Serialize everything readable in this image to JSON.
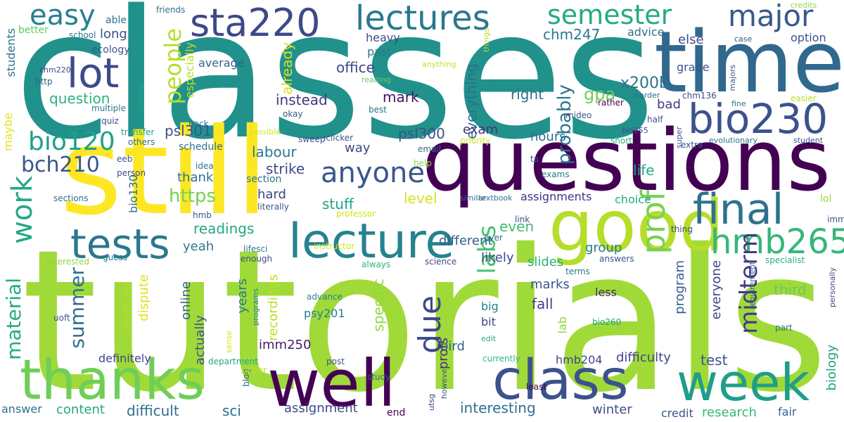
{
  "words": [
    {
      "text": "classes",
      "color": "#21918c"
    },
    {
      "text": "tutorials",
      "color": "#a0da39"
    },
    {
      "text": "still",
      "color": "#fde725"
    },
    {
      "text": "questions",
      "color": "#440154"
    },
    {
      "text": "time",
      "color": "#31688e"
    },
    {
      "text": "good",
      "color": "#b5de2b"
    },
    {
      "text": "well",
      "color": "#440154"
    },
    {
      "text": "thanks",
      "color": "#6ece58"
    },
    {
      "text": "class",
      "color": "#3b528b"
    },
    {
      "text": "week",
      "color": "#1f9e89"
    },
    {
      "text": "lecture",
      "color": "#26828e"
    },
    {
      "text": "lectures",
      "color": "#2a788e"
    },
    {
      "text": "sta220",
      "color": "#3e4989"
    },
    {
      "text": "semester",
      "color": "#25ab82"
    },
    {
      "text": "major",
      "color": "#38598c"
    },
    {
      "text": "bio230",
      "color": "#3b528b"
    },
    {
      "text": "final",
      "color": "#2c728e"
    },
    {
      "text": "hmb265",
      "color": "#35b779"
    },
    {
      "text": "tests",
      "color": "#2a788e"
    },
    {
      "text": "lot",
      "color": "#3e4a89"
    },
    {
      "text": "easy",
      "color": "#27808e"
    },
    {
      "text": "prof",
      "color": "#7ad151"
    },
    {
      "text": "anyone",
      "color": "#38588c"
    },
    {
      "text": "due",
      "color": "#3e4989"
    },
    {
      "text": "work",
      "color": "#22a884"
    },
    {
      "text": "bch210",
      "color": "#38588c"
    },
    {
      "text": "bio120",
      "color": "#1fa187"
    },
    {
      "text": "people",
      "color": "#b5de2b"
    },
    {
      "text": "material",
      "color": "#25ab82"
    },
    {
      "text": "labs",
      "color": "#48c16e"
    },
    {
      "text": "midterm",
      "color": "#443983"
    },
    {
      "text": "summer",
      "color": "#2d708e"
    },
    {
      "text": "https",
      "color": "#75d054"
    },
    {
      "text": "probably",
      "color": "#2c738e"
    },
    {
      "text": "gpa",
      "color": "#6ece58"
    },
    {
      "text": "x200b",
      "color": "#2c728e"
    },
    {
      "text": "chm247",
      "color": "#2a788e"
    },
    {
      "text": "psl301",
      "color": "#3b528b"
    },
    {
      "text": "psl300",
      "color": "#3b528b"
    },
    {
      "text": "readings",
      "color": "#22a884"
    },
    {
      "text": "labour",
      "color": "#2a788e"
    },
    {
      "text": "strike",
      "color": "#3e4a89"
    },
    {
      "text": "office",
      "color": "#404688"
    },
    {
      "text": "instead",
      "color": "#453581"
    },
    {
      "text": "mark",
      "color": "#471164"
    },
    {
      "text": "question",
      "color": "#2eb37c"
    },
    {
      "text": "already",
      "color": "#d8e219"
    },
    {
      "text": "especially",
      "color": "#bddf26"
    },
    {
      "text": "everything",
      "color": "#2d708e"
    },
    {
      "text": "right",
      "color": "#2c738e"
    },
    {
      "text": "exam",
      "color": "#46327e"
    },
    {
      "text": "hours",
      "color": "#2d708e"
    },
    {
      "text": "way",
      "color": "#3f4788"
    },
    {
      "text": "thank",
      "color": "#2c728e"
    },
    {
      "text": "hard",
      "color": "#414487"
    },
    {
      "text": "stuff",
      "color": "#20a386"
    },
    {
      "text": "level",
      "color": "#d8e219"
    },
    {
      "text": "even",
      "color": "#40bd72"
    },
    {
      "text": "different",
      "color": "#365c8d"
    },
    {
      "text": "likely",
      "color": "#3e4989"
    },
    {
      "text": "slides",
      "color": "#2ab07f"
    },
    {
      "text": "group",
      "color": "#29798e"
    },
    {
      "text": "life",
      "color": "#22a884"
    },
    {
      "text": "marks",
      "color": "#39568c"
    },
    {
      "text": "fall",
      "color": "#424086"
    },
    {
      "text": "program",
      "color": "#365d8d"
    },
    {
      "text": "everyone",
      "color": "#3f4889"
    },
    {
      "text": "third",
      "color": "#65cb5e"
    },
    {
      "text": "less",
      "color": "#481f70"
    },
    {
      "text": "lab",
      "color": "#8bd646"
    },
    {
      "text": "bit",
      "color": "#404588"
    },
    {
      "text": "big",
      "color": "#26818e"
    },
    {
      "text": "specific",
      "color": "#90d743"
    },
    {
      "text": "profs",
      "color": "#472d7b"
    },
    {
      "text": "interesting",
      "color": "#2e6f8e"
    },
    {
      "text": "winter",
      "color": "#3d4d8a"
    },
    {
      "text": "bird",
      "color": "#33638d"
    },
    {
      "text": "yeah",
      "color": "#2a788e"
    },
    {
      "text": "years",
      "color": "#2a788e"
    },
    {
      "text": "actually",
      "color": "#39568c"
    },
    {
      "text": "online",
      "color": "#33638d"
    },
    {
      "text": "recordings",
      "color": "#b8de29"
    },
    {
      "text": "dispute",
      "color": "#dfe318"
    },
    {
      "text": "psy201",
      "color": "#287c8e"
    },
    {
      "text": "imm250",
      "color": "#481a6c"
    },
    {
      "text": "definitely",
      "color": "#3f4788"
    },
    {
      "text": "content",
      "color": "#22a884"
    },
    {
      "text": "difficult",
      "color": "#2d708e"
    },
    {
      "text": "sci",
      "color": "#2d708e"
    },
    {
      "text": "assignment",
      "color": "#3f4889"
    },
    {
      "text": "answer",
      "color": "#2c728e"
    },
    {
      "text": "end",
      "color": "#440154"
    },
    {
      "text": "credit",
      "color": "#3b528b"
    },
    {
      "text": "research",
      "color": "#35b779"
    },
    {
      "text": "fair",
      "color": "#33638d"
    },
    {
      "text": "biology",
      "color": "#20a386"
    },
    {
      "text": "test",
      "color": "#3b528b"
    },
    {
      "text": "difficulty",
      "color": "#3f4788"
    },
    {
      "text": "hmb204",
      "color": "#414487"
    },
    {
      "text": "assignments",
      "color": "#46327e"
    },
    {
      "text": "choice",
      "color": "#22a884"
    },
    {
      "text": "bad",
      "color": "#443983"
    },
    {
      "text": "grade",
      "color": "#39568c"
    },
    {
      "text": "else",
      "color": "#3e4989"
    },
    {
      "text": "option",
      "color": "#3b528b"
    },
    {
      "text": "advice",
      "color": "#2d708e"
    },
    {
      "text": "average",
      "color": "#32648e"
    },
    {
      "text": "heavy",
      "color": "#3d4d8a"
    },
    {
      "text": "past",
      "color": "#2a788e"
    },
    {
      "text": "long",
      "color": "#3b528b"
    },
    {
      "text": "able",
      "color": "#2d708e"
    },
    {
      "text": "better",
      "color": "#5ec962"
    },
    {
      "text": "ecology",
      "color": "#38588c"
    },
    {
      "text": "students",
      "color": "#2c738e"
    },
    {
      "text": "maybe",
      "color": "#e5e419"
    },
    {
      "text": "schedule",
      "color": "#2c728e"
    },
    {
      "text": "section",
      "color": "#2c738e"
    },
    {
      "text": "bio130",
      "color": "#2d708e"
    },
    {
      "text": "something",
      "color": "#b2dd2d"
    },
    {
      "text": "advance",
      "color": "#27808e"
    },
    {
      "text": "uoft",
      "color": "#3b528b"
    },
    {
      "text": "lifesci",
      "color": "#2a788e"
    },
    {
      "text": "enough",
      "color": "#3e4a89"
    },
    {
      "text": "guess",
      "color": "#287d8e"
    },
    {
      "text": "interested",
      "color": "#8fd744"
    },
    {
      "text": "science",
      "color": "#3f4889"
    },
    {
      "text": "always",
      "color": "#2fb47c"
    },
    {
      "text": "answers",
      "color": "#3b528b"
    },
    {
      "text": "terms",
      "color": "#2a788e"
    },
    {
      "text": "specialist",
      "color": "#2ab07f"
    },
    {
      "text": "requirement",
      "color": "#31688e"
    },
    {
      "text": "part",
      "color": "#2c728e"
    },
    {
      "text": "personally",
      "color": "#3e4a89"
    },
    {
      "text": "lol",
      "color": "#9bd93c"
    },
    {
      "text": "imm",
      "color": "#3b528b"
    },
    {
      "text": "thing",
      "color": "#3f4788"
    },
    {
      "text": "ever",
      "color": "#2d708e"
    },
    {
      "text": "link",
      "color": "#3b528b"
    },
    {
      "text": "similar",
      "color": "#31688e"
    },
    {
      "text": "textbook",
      "color": "#2c738e"
    },
    {
      "text": "edit",
      "color": "#25ab82"
    },
    {
      "text": "bio260",
      "color": "#20a386"
    },
    {
      "text": "currently",
      "color": "#35b779"
    },
    {
      "text": "least",
      "color": "#440154"
    },
    {
      "text": "study",
      "color": "#32648e"
    },
    {
      "text": "however",
      "color": "#3b528b"
    },
    {
      "text": "utsg",
      "color": "#3f4889"
    },
    {
      "text": "post",
      "color": "#3b528b"
    },
    {
      "text": "department",
      "color": "#22a884"
    },
    {
      "text": "blog",
      "color": "#31688e"
    },
    {
      "text": "upper",
      "color": "#b8de29"
    },
    {
      "text": "sense",
      "color": "#d8e219"
    },
    {
      "text": "programs",
      "color": "#26828e"
    },
    {
      "text": "sections",
      "color": "#2c728e"
    },
    {
      "text": "literally",
      "color": "#39568c"
    },
    {
      "text": "instructor",
      "color": "#d2e21b"
    },
    {
      "text": "hmb",
      "color": "#3b528b"
    },
    {
      "text": "professor",
      "color": "#d2e21b"
    },
    {
      "text": "help",
      "color": "#8bd646"
    },
    {
      "text": "ta",
      "color": "#3e4989"
    },
    {
      "text": "exams",
      "color": "#2a788e"
    },
    {
      "text": "idea",
      "color": "#2c728e"
    },
    {
      "text": "person",
      "color": "#3e4989"
    },
    {
      "text": "eeb",
      "color": "#3b528b"
    },
    {
      "text": "others",
      "color": "#2c728e"
    },
    {
      "text": "transfer",
      "color": "#1fa187"
    },
    {
      "text": "quiz",
      "color": "#3b528b"
    },
    {
      "text": "multiple",
      "color": "#2a788e"
    },
    {
      "text": "http",
      "color": "#33638d"
    },
    {
      "text": "chm220",
      "color": "#3e4989"
    },
    {
      "text": "tutorial",
      "color": "#22a884"
    },
    {
      "text": "school",
      "color": "#2c728e"
    },
    {
      "text": "friends",
      "color": "#2c728e"
    },
    {
      "text": "back",
      "color": "#2d708e"
    },
    {
      "text": "okay",
      "color": "#3b528b"
    },
    {
      "text": "sweep",
      "color": "#3e4a89"
    },
    {
      "text": "iclicker",
      "color": "#3b528b"
    },
    {
      "text": "possible",
      "color": "#d2e21b"
    },
    {
      "text": "email",
      "color": "#2d708e"
    },
    {
      "text": "priority",
      "color": "#d2e21b"
    },
    {
      "text": "anything",
      "color": "#c2df23"
    },
    {
      "text": "reading",
      "color": "#65cb5e"
    },
    {
      "text": "best",
      "color": "#2c728e"
    },
    {
      "text": "mideo",
      "color": "#3b528b"
    },
    {
      "text": "rather",
      "color": "#440154"
    },
    {
      "text": "harder",
      "color": "#31688e"
    },
    {
      "text": "chm136",
      "color": "#3f4889"
    },
    {
      "text": "things",
      "color": "#b8de29"
    },
    {
      "text": "majors",
      "color": "#3b528b"
    },
    {
      "text": "credits",
      "color": "#8fd744"
    },
    {
      "text": "case",
      "color": "#3b528b"
    },
    {
      "text": "easier",
      "color": "#b8de29"
    },
    {
      "text": "fine",
      "color": "#2c728e"
    },
    {
      "text": "half",
      "color": "#3b528b"
    },
    {
      "text": "short",
      "color": "#2ab07f"
    },
    {
      "text": "super",
      "color": "#3b528b"
    },
    {
      "text": "bio255",
      "color": "#3e4989"
    },
    {
      "text": "extra",
      "color": "#3b528b"
    },
    {
      "text": "evolutionary",
      "color": "#2c728e"
    },
    {
      "text": "student",
      "color": "#3b528b"
    }
  ]
}
